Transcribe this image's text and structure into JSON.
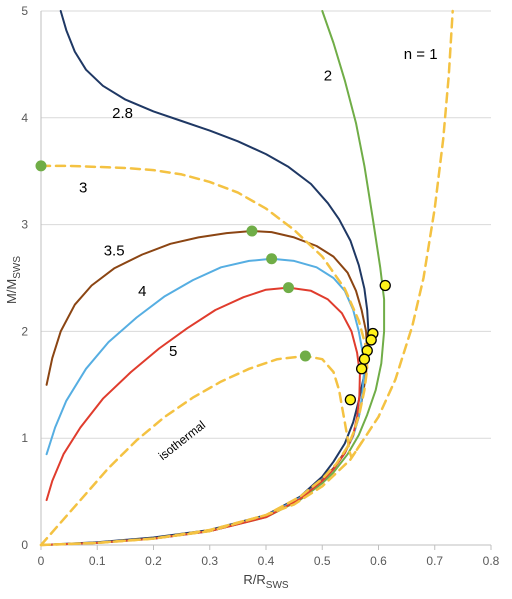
{
  "chart_data": {
    "type": "line",
    "xlabel_main": "R/R",
    "xlabel_sub": "SWS",
    "ylabel_main": "M/M",
    "ylabel_sub": "SWS",
    "xlim": [
      0,
      0.8
    ],
    "ylim": [
      0,
      5
    ],
    "x_ticks": [
      0,
      0.1,
      0.2,
      0.3,
      0.4,
      0.5,
      0.6,
      0.7,
      0.8
    ],
    "x_tick_labels": [
      "0",
      "0.1",
      "0.2",
      "0.3",
      "0.4",
      "0.5",
      "0.6",
      "0.7",
      "0.8"
    ],
    "y_ticks": [
      0,
      1,
      2,
      3,
      4,
      5
    ],
    "y_tick_labels": [
      "0",
      "1",
      "2",
      "3",
      "4",
      "5"
    ],
    "grid": "horizontal",
    "colors": {
      "solid_curve": "#1F3864",
      "dashed": "#F4C242",
      "green": "#70AD47",
      "brown": "#8B4513",
      "blue": "#56AEE2",
      "red": "#E03C2D",
      "marker_green": "#70AD47",
      "marker_yellow": "#FFF21A"
    },
    "series": [
      {
        "label": "2.8",
        "color": "#1F3864",
        "dash": false,
        "points": [
          [
            0.035,
            5.0
          ],
          [
            0.045,
            4.82
          ],
          [
            0.06,
            4.62
          ],
          [
            0.08,
            4.45
          ],
          [
            0.11,
            4.3
          ],
          [
            0.15,
            4.17
          ],
          [
            0.2,
            4.06
          ],
          [
            0.25,
            3.97
          ],
          [
            0.3,
            3.88
          ],
          [
            0.35,
            3.78
          ],
          [
            0.4,
            3.66
          ],
          [
            0.44,
            3.54
          ],
          [
            0.48,
            3.38
          ],
          [
            0.51,
            3.2
          ],
          [
            0.53,
            3.05
          ],
          [
            0.55,
            2.85
          ],
          [
            0.565,
            2.62
          ],
          [
            0.575,
            2.4
          ],
          [
            0.58,
            2.2
          ],
          [
            0.582,
            2.0
          ],
          [
            0.58,
            1.8
          ],
          [
            0.575,
            1.6
          ],
          [
            0.565,
            1.35
          ],
          [
            0.555,
            1.15
          ],
          [
            0.54,
            0.95
          ],
          [
            0.52,
            0.78
          ],
          [
            0.5,
            0.64
          ],
          [
            0.46,
            0.45
          ],
          [
            0.4,
            0.28
          ],
          [
            0.3,
            0.14
          ],
          [
            0.2,
            0.07
          ],
          [
            0.1,
            0.025
          ],
          [
            0.0,
            0.0
          ]
        ]
      },
      {
        "label": "2",
        "color": "#70AD47",
        "dash": false,
        "points": [
          [
            0.5,
            5.0
          ],
          [
            0.52,
            4.7
          ],
          [
            0.54,
            4.35
          ],
          [
            0.56,
            3.95
          ],
          [
            0.575,
            3.55
          ],
          [
            0.59,
            3.05
          ],
          [
            0.603,
            2.6
          ],
          [
            0.61,
            2.3
          ],
          [
            0.61,
            2.0
          ],
          [
            0.605,
            1.7
          ],
          [
            0.595,
            1.45
          ],
          [
            0.58,
            1.22
          ],
          [
            0.565,
            1.03
          ],
          [
            0.545,
            0.85
          ],
          [
            0.52,
            0.68
          ],
          [
            0.5,
            0.58
          ],
          [
            0.46,
            0.42
          ],
          [
            0.4,
            0.26
          ],
          [
            0.3,
            0.13
          ],
          [
            0.2,
            0.06
          ],
          [
            0.1,
            0.02
          ],
          [
            0.0,
            0.0
          ]
        ]
      },
      {
        "label": "3.5",
        "color": "#8B4513",
        "dash": false,
        "points": [
          [
            0.01,
            1.5
          ],
          [
            0.02,
            1.75
          ],
          [
            0.035,
            2.0
          ],
          [
            0.06,
            2.25
          ],
          [
            0.09,
            2.43
          ],
          [
            0.13,
            2.59
          ],
          [
            0.18,
            2.72
          ],
          [
            0.23,
            2.82
          ],
          [
            0.28,
            2.88
          ],
          [
            0.33,
            2.92
          ],
          [
            0.375,
            2.94
          ],
          [
            0.41,
            2.93
          ],
          [
            0.45,
            2.88
          ],
          [
            0.49,
            2.8
          ],
          [
            0.52,
            2.7
          ],
          [
            0.545,
            2.55
          ],
          [
            0.56,
            2.38
          ],
          [
            0.57,
            2.2
          ],
          [
            0.578,
            2.0
          ],
          [
            0.58,
            1.8
          ],
          [
            0.578,
            1.6
          ],
          [
            0.572,
            1.4
          ],
          [
            0.565,
            1.2
          ],
          [
            0.555,
            1.03
          ],
          [
            0.54,
            0.87
          ],
          [
            0.52,
            0.72
          ],
          [
            0.5,
            0.61
          ],
          [
            0.46,
            0.44
          ],
          [
            0.4,
            0.27
          ],
          [
            0.3,
            0.13
          ],
          [
            0.2,
            0.06
          ],
          [
            0.1,
            0.02
          ],
          [
            0.0,
            0.0
          ]
        ]
      },
      {
        "label": "4",
        "color": "#56AEE2",
        "dash": false,
        "points": [
          [
            0.01,
            0.85
          ],
          [
            0.025,
            1.1
          ],
          [
            0.045,
            1.35
          ],
          [
            0.08,
            1.65
          ],
          [
            0.12,
            1.9
          ],
          [
            0.17,
            2.13
          ],
          [
            0.22,
            2.33
          ],
          [
            0.27,
            2.48
          ],
          [
            0.32,
            2.6
          ],
          [
            0.37,
            2.66
          ],
          [
            0.41,
            2.68
          ],
          [
            0.45,
            2.66
          ],
          [
            0.49,
            2.6
          ],
          [
            0.52,
            2.5
          ],
          [
            0.54,
            2.38
          ],
          [
            0.555,
            2.2
          ],
          [
            0.565,
            2.0
          ],
          [
            0.572,
            1.8
          ],
          [
            0.574,
            1.6
          ],
          [
            0.571,
            1.4
          ],
          [
            0.565,
            1.2
          ],
          [
            0.555,
            1.02
          ],
          [
            0.54,
            0.86
          ],
          [
            0.52,
            0.71
          ],
          [
            0.5,
            0.6
          ],
          [
            0.46,
            0.44
          ],
          [
            0.4,
            0.27
          ],
          [
            0.3,
            0.13
          ],
          [
            0.2,
            0.06
          ],
          [
            0.1,
            0.02
          ],
          [
            0.0,
            0.0
          ]
        ]
      },
      {
        "label": "5",
        "color": "#E03C2D",
        "dash": false,
        "points": [
          [
            0.01,
            0.42
          ],
          [
            0.02,
            0.6
          ],
          [
            0.04,
            0.85
          ],
          [
            0.07,
            1.1
          ],
          [
            0.11,
            1.37
          ],
          [
            0.16,
            1.62
          ],
          [
            0.21,
            1.84
          ],
          [
            0.26,
            2.03
          ],
          [
            0.31,
            2.2
          ],
          [
            0.36,
            2.32
          ],
          [
            0.4,
            2.39
          ],
          [
            0.44,
            2.41
          ],
          [
            0.48,
            2.38
          ],
          [
            0.51,
            2.3
          ],
          [
            0.535,
            2.17
          ],
          [
            0.552,
            2.0
          ],
          [
            0.562,
            1.8
          ],
          [
            0.567,
            1.6
          ],
          [
            0.566,
            1.4
          ],
          [
            0.562,
            1.2
          ],
          [
            0.555,
            1.03
          ],
          [
            0.54,
            0.86
          ],
          [
            0.52,
            0.71
          ],
          [
            0.5,
            0.6
          ],
          [
            0.46,
            0.43
          ],
          [
            0.4,
            0.26
          ],
          [
            0.3,
            0.13
          ],
          [
            0.2,
            0.06
          ],
          [
            0.1,
            0.02
          ],
          [
            0.0,
            0.0
          ]
        ]
      },
      {
        "label": "3",
        "color": "#F4C242",
        "dash": true,
        "points": [
          [
            0.0,
            3.55
          ],
          [
            0.05,
            3.55
          ],
          [
            0.1,
            3.54
          ],
          [
            0.15,
            3.53
          ],
          [
            0.2,
            3.51
          ],
          [
            0.25,
            3.47
          ],
          [
            0.3,
            3.4
          ],
          [
            0.35,
            3.3
          ],
          [
            0.4,
            3.15
          ],
          [
            0.45,
            2.95
          ],
          [
            0.5,
            2.7
          ],
          [
            0.54,
            2.4
          ],
          [
            0.565,
            2.1
          ],
          [
            0.578,
            1.85
          ],
          [
            0.58,
            1.65
          ],
          [
            0.575,
            1.45
          ],
          [
            0.567,
            1.25
          ],
          [
            0.557,
            1.07
          ],
          [
            0.545,
            0.92
          ],
          [
            0.525,
            0.76
          ],
          [
            0.5,
            0.62
          ],
          [
            0.46,
            0.45
          ],
          [
            0.4,
            0.28
          ],
          [
            0.3,
            0.13
          ],
          [
            0.2,
            0.06
          ],
          [
            0.1,
            0.02
          ],
          [
            0.0,
            0.0
          ]
        ]
      },
      {
        "label": "n = 1",
        "color": "#F4C242",
        "dash": true,
        "points": [
          [
            0.0,
            0.0
          ],
          [
            0.1,
            0.02
          ],
          [
            0.2,
            0.06
          ],
          [
            0.3,
            0.14
          ],
          [
            0.4,
            0.28
          ],
          [
            0.45,
            0.38
          ],
          [
            0.5,
            0.55
          ],
          [
            0.55,
            0.8
          ],
          [
            0.6,
            1.2
          ],
          [
            0.63,
            1.55
          ],
          [
            0.66,
            2.05
          ],
          [
            0.68,
            2.5
          ],
          [
            0.7,
            3.15
          ],
          [
            0.715,
            3.8
          ],
          [
            0.725,
            4.4
          ],
          [
            0.732,
            5.0
          ]
        ]
      },
      {
        "label": "isothermal",
        "color": "#F4C242",
        "dash": true,
        "points": [
          [
            0.0,
            0.0
          ],
          [
            0.03,
            0.18
          ],
          [
            0.07,
            0.42
          ],
          [
            0.12,
            0.72
          ],
          [
            0.17,
            0.98
          ],
          [
            0.22,
            1.2
          ],
          [
            0.27,
            1.38
          ],
          [
            0.32,
            1.53
          ],
          [
            0.37,
            1.65
          ],
          [
            0.42,
            1.74
          ],
          [
            0.47,
            1.77
          ],
          [
            0.5,
            1.74
          ],
          [
            0.52,
            1.62
          ],
          [
            0.53,
            1.45
          ],
          [
            0.535,
            1.3
          ],
          [
            0.54,
            1.15
          ],
          [
            0.545,
            1.0
          ],
          [
            0.548,
            0.88
          ],
          [
            0.552,
            0.82
          ],
          [
            0.56,
            0.88
          ],
          [
            0.575,
            1.0
          ]
        ]
      }
    ],
    "markers": [
      {
        "x": 0.0,
        "y": 3.55,
        "color": "#70AD47"
      },
      {
        "x": 0.375,
        "y": 2.94,
        "color": "#70AD47"
      },
      {
        "x": 0.41,
        "y": 2.68,
        "color": "#70AD47"
      },
      {
        "x": 0.44,
        "y": 2.41,
        "color": "#70AD47"
      },
      {
        "x": 0.47,
        "y": 1.77,
        "color": "#70AD47"
      },
      {
        "x": 0.612,
        "y": 2.43,
        "color": "#FFF21A"
      },
      {
        "x": 0.59,
        "y": 1.98,
        "color": "#FFF21A"
      },
      {
        "x": 0.587,
        "y": 1.92,
        "color": "#FFF21A"
      },
      {
        "x": 0.58,
        "y": 1.82,
        "color": "#FFF21A"
      },
      {
        "x": 0.575,
        "y": 1.74,
        "color": "#FFF21A"
      },
      {
        "x": 0.57,
        "y": 1.65,
        "color": "#FFF21A"
      },
      {
        "x": 0.55,
        "y": 1.36,
        "color": "#FFF21A"
      }
    ],
    "annotations": [
      {
        "text": "2.8",
        "x": 0.145,
        "y": 4.0,
        "class": "curve-label"
      },
      {
        "text": "2",
        "x": 0.51,
        "y": 4.35,
        "class": "curve-label"
      },
      {
        "text": "n = 1",
        "x": 0.675,
        "y": 4.55,
        "class": "curve-label"
      },
      {
        "text": "3",
        "x": 0.075,
        "y": 3.3,
        "class": "curve-label"
      },
      {
        "text": "3.5",
        "x": 0.13,
        "y": 2.71,
        "class": "curve-label"
      },
      {
        "text": "4",
        "x": 0.18,
        "y": 2.33,
        "class": "curve-label"
      },
      {
        "text": "5",
        "x": 0.235,
        "y": 1.77,
        "class": "curve-label"
      },
      {
        "text": "isothermal",
        "x": 0.255,
        "y": 0.95,
        "class": "iso-label",
        "rotate": -38
      }
    ]
  }
}
